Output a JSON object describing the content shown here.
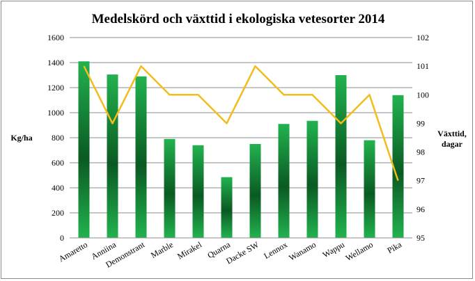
{
  "chart_data": {
    "type": "bar",
    "title": "Medelskörd och växttid i ekologiska vetesorter 2014",
    "categories": [
      "Amaretto",
      "Anniina",
      "Demonstrant",
      "Marble",
      "Mirakel",
      "Quarna",
      "Dacke SW",
      "Lennox",
      "Wanamo",
      "Wappu",
      "Wellamo",
      "Pika"
    ],
    "series": [
      {
        "axis": "left",
        "type": "bar",
        "values": [
          1410,
          1305,
          1290,
          790,
          740,
          485,
          750,
          910,
          935,
          1300,
          780,
          1140
        ],
        "color": "#1fa64a"
      },
      {
        "axis": "right",
        "type": "line",
        "values": [
          101,
          99,
          101,
          100,
          100,
          99,
          101,
          100,
          100,
          99,
          100,
          97
        ],
        "color": "#f2bc1b"
      }
    ],
    "ylabel": "Kg/ha",
    "ylabel2": [
      "Växttid,",
      "dagar"
    ],
    "ylim": [
      0,
      1600
    ],
    "ylim2": [
      95,
      102
    ],
    "yticks": [
      "0",
      "200",
      "400",
      "600",
      "800",
      "1000",
      "1200",
      "1400",
      "1600"
    ],
    "yticks2": [
      "95",
      "96",
      "97",
      "98",
      "99",
      "100",
      "101",
      "102"
    ],
    "grid": true,
    "legend": "none"
  }
}
